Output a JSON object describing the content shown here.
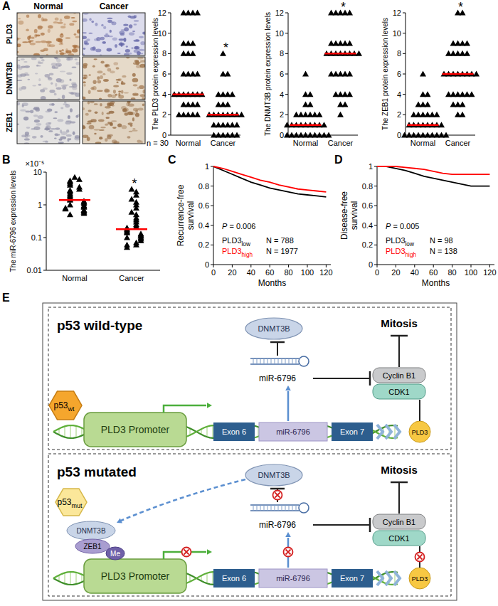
{
  "panel_labels": [
    "A",
    "B",
    "C",
    "D",
    "E"
  ],
  "ihc": {
    "columns": [
      "Normal",
      "Cancer"
    ],
    "rows": [
      "PLD3",
      "DNMT3B",
      "ZEB1"
    ],
    "n_label": "n = 30"
  },
  "chart_data": [
    {
      "type": "dot",
      "ylabel": "The PLD3 protein expression levels",
      "categories": [
        "Normal",
        "Cancer"
      ],
      "ylim": [
        0,
        12
      ],
      "yticks": [
        0,
        2,
        4,
        6,
        8,
        10,
        12
      ],
      "color": "#000000",
      "marker": "triangle",
      "groups": [
        {
          "values": [
            12,
            12,
            12,
            12,
            9,
            9,
            9,
            8,
            8,
            8,
            6,
            6,
            6,
            6,
            4,
            4,
            4,
            4,
            4,
            4,
            4,
            3,
            3,
            3,
            3,
            2,
            2,
            2,
            2,
            2
          ],
          "median": 4
        },
        {
          "values": [
            8,
            6,
            6,
            4,
            4,
            4,
            4,
            3,
            3,
            3,
            2,
            2,
            2,
            2,
            2,
            2,
            2,
            2,
            1,
            1,
            1,
            1,
            1,
            1,
            0,
            0,
            0,
            0,
            0,
            0
          ],
          "median": 2,
          "annotation": "*"
        }
      ]
    },
    {
      "type": "dot",
      "ylabel": "The DNMT3B protein expression levels",
      "categories": [
        "Normal",
        "Cancer"
      ],
      "ylim": [
        0,
        12
      ],
      "yticks": [
        0,
        2,
        4,
        6,
        8,
        10,
        12
      ],
      "color": "#000000",
      "marker": "triangle",
      "groups": [
        {
          "values": [
            6,
            4,
            4,
            3,
            3,
            2,
            2,
            2,
            2,
            2,
            2,
            1,
            1,
            1,
            1,
            1,
            1,
            1,
            1,
            1,
            0,
            0,
            0,
            0,
            0,
            0,
            0,
            0,
            0,
            0
          ],
          "median": 1
        },
        {
          "values": [
            12,
            12,
            12,
            12,
            12,
            9,
            9,
            9,
            9,
            9,
            8,
            8,
            8,
            8,
            8,
            8,
            8,
            8,
            6,
            6,
            6,
            6,
            6,
            4,
            4,
            4,
            4,
            3,
            3,
            2
          ],
          "median": 8,
          "annotation": "*"
        }
      ]
    },
    {
      "type": "dot",
      "ylabel": "The ZEB1 protein expression levels",
      "categories": [
        "Normal",
        "Cancer"
      ],
      "ylim": [
        0,
        12
      ],
      "yticks": [
        0,
        2,
        4,
        6,
        8,
        10,
        12
      ],
      "color": "#000000",
      "marker": "triangle",
      "groups": [
        {
          "values": [
            6,
            4,
            4,
            3,
            3,
            3,
            2,
            2,
            2,
            2,
            2,
            2,
            1,
            1,
            1,
            1,
            1,
            1,
            1,
            1,
            0,
            0,
            0,
            0,
            0,
            0,
            0,
            0,
            0,
            0
          ],
          "median": 1
        },
        {
          "values": [
            12,
            12,
            9,
            9,
            9,
            9,
            8,
            8,
            8,
            8,
            8,
            6,
            6,
            6,
            6,
            6,
            6,
            6,
            6,
            4,
            4,
            4,
            4,
            4,
            4,
            3,
            3,
            3,
            2,
            2
          ],
          "median": 6,
          "annotation": "*"
        }
      ]
    },
    {
      "type": "dot",
      "log": "y",
      "ylabel": "The miR-6796 expression levels",
      "annotations": [
        "×10⁻⁵"
      ],
      "categories": [
        "Normal",
        "Cancer"
      ],
      "ylim": [
        0.01,
        10
      ],
      "yticks": [
        0.01,
        0.1,
        1,
        10
      ],
      "color": "#000000",
      "marker": "triangle",
      "groups": [
        {
          "values": [
            7,
            6,
            5.5,
            5,
            4.5,
            4,
            3.5,
            3,
            2.8,
            2.5,
            2.2,
            2,
            1.8,
            1.6,
            1.5,
            1.4,
            1.3,
            1.2,
            1.1,
            1,
            0.95,
            0.9,
            0.85,
            0.8,
            0.75,
            0.7,
            0.65,
            0.6,
            0.55,
            0.5
          ],
          "median": 1.4
        },
        {
          "values": [
            3,
            2.5,
            2,
            1.5,
            1.2,
            1,
            0.8,
            0.6,
            0.5,
            0.4,
            0.35,
            0.3,
            0.25,
            0.22,
            0.2,
            0.18,
            0.16,
            0.15,
            0.14,
            0.13,
            0.12,
            0.11,
            0.1,
            0.1,
            0.09,
            0.08,
            0.07,
            0.06,
            0.06,
            0.05
          ],
          "median": 0.18,
          "annotation": "*"
        }
      ]
    },
    {
      "type": "line",
      "ylabel": "Recurrence-free survival",
      "xlabel": "Months",
      "x": [
        0,
        10,
        20,
        30,
        40,
        50,
        60,
        70,
        80,
        90,
        100,
        110,
        120
      ],
      "xlim": [
        0,
        125
      ],
      "xticks": [
        0,
        20,
        40,
        60,
        80,
        100,
        120
      ],
      "ylim": [
        0,
        1
      ],
      "yticks": [
        0,
        0.2,
        0.4,
        0.6,
        0.8,
        1
      ],
      "annotations": [
        "P = 0.006"
      ],
      "series": [
        {
          "name": "PLD3low",
          "color": "#000000",
          "count_label": "N = 788",
          "values": [
            1,
            0.96,
            0.92,
            0.88,
            0.84,
            0.81,
            0.78,
            0.76,
            0.74,
            0.72,
            0.71,
            0.7,
            0.69
          ]
        },
        {
          "name": "PLD3high",
          "color": "#ff0000",
          "count_label": "N = 1977",
          "values": [
            1,
            0.98,
            0.95,
            0.92,
            0.89,
            0.86,
            0.84,
            0.81,
            0.79,
            0.77,
            0.76,
            0.75,
            0.74
          ]
        }
      ]
    },
    {
      "type": "line",
      "ylabel": "Disease-free survival",
      "xlabel": "Months",
      "x": [
        0,
        10,
        20,
        30,
        40,
        50,
        60,
        70,
        80,
        90,
        100,
        110,
        120
      ],
      "xlim": [
        0,
        125
      ],
      "xticks": [
        0,
        20,
        40,
        60,
        80,
        100,
        120
      ],
      "ylim": [
        0,
        1
      ],
      "yticks": [
        0,
        0.2,
        0.4,
        0.6,
        0.8,
        1
      ],
      "annotations": [
        "P = 0.005"
      ],
      "series": [
        {
          "name": "PLD3low",
          "color": "#000000",
          "count_label": "N = 98",
          "values": [
            1,
            1,
            0.98,
            0.96,
            0.93,
            0.9,
            0.88,
            0.86,
            0.84,
            0.82,
            0.8,
            0.8,
            0.8
          ]
        },
        {
          "name": "PLD3high",
          "color": "#ff0000",
          "count_label": "N = 138",
          "values": [
            1,
            1,
            1,
            0.99,
            0.98,
            0.97,
            0.95,
            0.93,
            0.92,
            0.92,
            0.92,
            0.92,
            0.92
          ]
        }
      ]
    }
  ],
  "diagram": {
    "sections": [
      {
        "title": "p53 wild-type",
        "p53": {
          "text": "p53",
          "sub": "wt"
        }
      },
      {
        "title": "p53 mutated",
        "p53": {
          "text": "p53",
          "sub": "mut"
        },
        "complex": [
          "DNMT3B",
          "ZEB1",
          "Me"
        ]
      }
    ],
    "labels": {
      "dnmt3b": "DNMT3B",
      "mirna": "miR-6796",
      "mitosis": "Mitosis",
      "cyclin": "Cyclin B1",
      "cdk1": "CDK1",
      "promoter": "PLD3 Promoter",
      "exon6": "Exon 6",
      "exon7": "Exon 7",
      "pld3": "PLD3"
    }
  }
}
